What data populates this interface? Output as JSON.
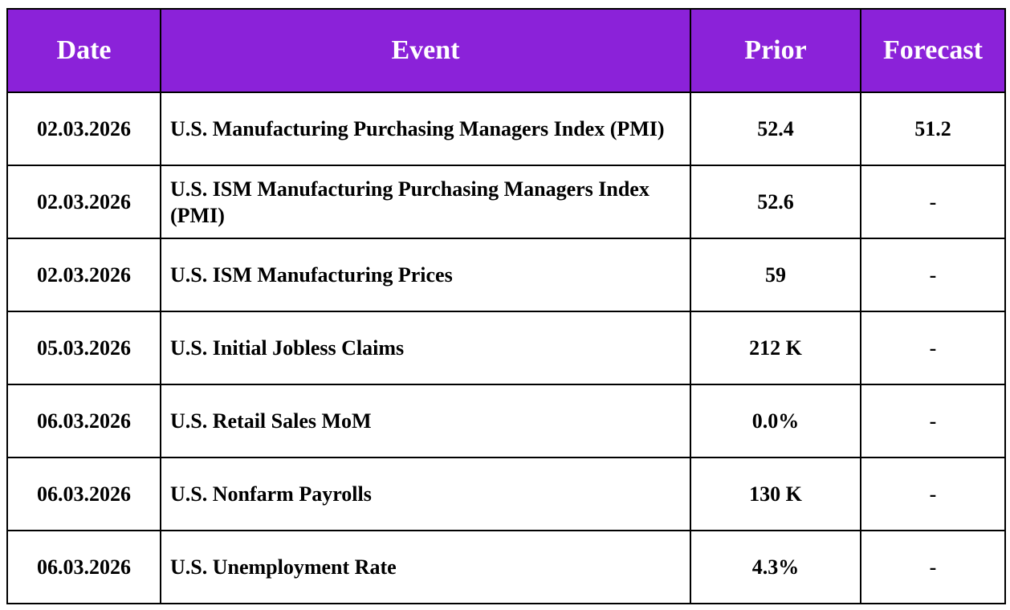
{
  "table": {
    "headers": {
      "date": "Date",
      "event": "Event",
      "prior": "Prior",
      "forecast": "Forecast"
    },
    "header_color": "#8b22d9",
    "rows": [
      {
        "date": "02.03.2026",
        "event": "U.S. Manufacturing Purchasing Managers Index (PMI)",
        "prior": "52.4",
        "forecast": "51.2"
      },
      {
        "date": "02.03.2026",
        "event": "U.S. ISM Manufacturing Purchasing Managers Index (PMI)",
        "prior": "52.6",
        "forecast": "-"
      },
      {
        "date": "02.03.2026",
        "event": "U.S. ISM Manufacturing Prices",
        "prior": "59",
        "forecast": "-"
      },
      {
        "date": "05.03.2026",
        "event": "U.S. Initial Jobless Claims",
        "prior": "212 K",
        "forecast": "-"
      },
      {
        "date": "06.03.2026",
        "event": "U.S. Retail Sales MoM",
        "prior": "0.0%",
        "forecast": "-"
      },
      {
        "date": "06.03.2026",
        "event": "U.S. Nonfarm Payrolls",
        "prior": "130 K",
        "forecast": "-"
      },
      {
        "date": "06.03.2026",
        "event": "U.S. Unemployment Rate",
        "prior": "4.3%",
        "forecast": "-"
      }
    ]
  }
}
